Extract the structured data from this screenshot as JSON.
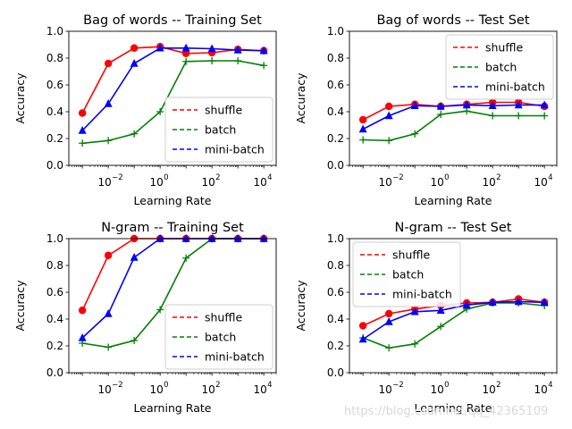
{
  "watermark": "https://blog.csdn.net/qq_42365109",
  "chart_data": [
    {
      "type": "line",
      "title": "Bag of words -- Training Set",
      "xlabel": "Learning Rate",
      "ylabel": "Accuracy",
      "xscale": "log",
      "x": [
        0.001,
        0.01,
        0.1,
        1,
        10,
        100,
        1000,
        10000
      ],
      "xlim": [
        0.0003,
        30000
      ],
      "ylim": [
        0.0,
        1.0
      ],
      "xticks": [
        0.01,
        1,
        100,
        10000
      ],
      "xtick_labels": [
        "10",
        "10",
        "10",
        "10"
      ],
      "xtick_exponents": [
        "−2",
        "0",
        "2",
        "4"
      ],
      "yticks": [
        0.0,
        0.2,
        0.4,
        0.6,
        0.8,
        1.0
      ],
      "ytick_labels": [
        "0.0",
        "0.2",
        "0.4",
        "0.6",
        "0.8",
        "1.0"
      ],
      "legend_position": "lower-right",
      "series": [
        {
          "name": "shuffle",
          "color": "#ff0000",
          "marker": "circle",
          "values": [
            0.39,
            0.76,
            0.875,
            0.885,
            0.835,
            0.84,
            0.865,
            0.855
          ]
        },
        {
          "name": "batch",
          "color": "#008000",
          "marker": "plus",
          "values": [
            0.165,
            0.185,
            0.235,
            0.4,
            0.775,
            0.78,
            0.78,
            0.745
          ]
        },
        {
          "name": "mini-batch",
          "color": "#0000ff",
          "marker": "triangle",
          "values": [
            0.26,
            0.46,
            0.76,
            0.875,
            0.875,
            0.87,
            0.86,
            0.855
          ]
        }
      ]
    },
    {
      "type": "line",
      "title": "Bag of words -- Test Set",
      "xlabel": "Learning Rate",
      "ylabel": "Accuracy",
      "xscale": "log",
      "x": [
        0.001,
        0.01,
        0.1,
        1,
        10,
        100,
        1000,
        10000
      ],
      "xlim": [
        0.0003,
        30000
      ],
      "ylim": [
        0.0,
        1.0
      ],
      "xticks": [
        0.01,
        1,
        100,
        10000
      ],
      "xtick_labels": [
        "10",
        "10",
        "10",
        "10"
      ],
      "xtick_exponents": [
        "−2",
        "0",
        "2",
        "4"
      ],
      "yticks": [
        0.0,
        0.2,
        0.4,
        0.6,
        0.8,
        1.0
      ],
      "ytick_labels": [
        "0.0",
        "0.2",
        "0.4",
        "0.6",
        "0.8",
        "1.0"
      ],
      "legend_position": "upper-right",
      "series": [
        {
          "name": "shuffle",
          "color": "#ff0000",
          "marker": "circle",
          "values": [
            0.34,
            0.44,
            0.455,
            0.44,
            0.455,
            0.47,
            0.47,
            0.44
          ]
        },
        {
          "name": "batch",
          "color": "#008000",
          "marker": "plus",
          "values": [
            0.19,
            0.185,
            0.235,
            0.38,
            0.405,
            0.37,
            0.37,
            0.37
          ]
        },
        {
          "name": "mini-batch",
          "color": "#0000ff",
          "marker": "triangle",
          "values": [
            0.27,
            0.37,
            0.445,
            0.44,
            0.45,
            0.445,
            0.45,
            0.45
          ]
        }
      ]
    },
    {
      "type": "line",
      "title": "N-gram -- Training Set",
      "xlabel": "Learning Rate",
      "ylabel": "Accuracy",
      "xscale": "log",
      "x": [
        0.001,
        0.01,
        0.1,
        1,
        10,
        100,
        1000,
        10000
      ],
      "xlim": [
        0.0003,
        30000
      ],
      "ylim": [
        0.0,
        1.0
      ],
      "xticks": [
        0.01,
        1,
        100,
        10000
      ],
      "xtick_labels": [
        "10",
        "10",
        "10",
        "10"
      ],
      "xtick_exponents": [
        "−2",
        "0",
        "2",
        "4"
      ],
      "yticks": [
        0.0,
        0.2,
        0.4,
        0.6,
        0.8,
        1.0
      ],
      "ytick_labels": [
        "0.0",
        "0.2",
        "0.4",
        "0.6",
        "0.8",
        "1.0"
      ],
      "legend_position": "lower-right",
      "series": [
        {
          "name": "shuffle",
          "color": "#ff0000",
          "marker": "circle",
          "values": [
            0.465,
            0.875,
            1.0,
            1.0,
            1.0,
            1.0,
            1.0,
            1.0
          ]
        },
        {
          "name": "batch",
          "color": "#008000",
          "marker": "plus",
          "values": [
            0.22,
            0.19,
            0.24,
            0.47,
            0.855,
            1.0,
            1.0,
            1.0
          ]
        },
        {
          "name": "mini-batch",
          "color": "#0000ff",
          "marker": "triangle",
          "values": [
            0.26,
            0.44,
            0.86,
            1.0,
            1.0,
            1.0,
            1.0,
            1.0
          ]
        }
      ]
    },
    {
      "type": "line",
      "title": "N-gram -- Test Set",
      "xlabel": "Learning Rate",
      "ylabel": "Accuracy",
      "xscale": "log",
      "x": [
        0.001,
        0.01,
        0.1,
        1,
        10,
        100,
        1000,
        10000
      ],
      "xlim": [
        0.0003,
        30000
      ],
      "ylim": [
        0.0,
        1.0
      ],
      "xticks": [
        0.01,
        1,
        100,
        10000
      ],
      "xtick_labels": [
        "10",
        "10",
        "10",
        "10"
      ],
      "xtick_exponents": [
        "−2",
        "0",
        "2",
        "4"
      ],
      "yticks": [
        0.0,
        0.2,
        0.4,
        0.6,
        0.8,
        1.0
      ],
      "ytick_labels": [
        "0.0",
        "0.2",
        "0.4",
        "0.6",
        "0.8",
        "1.0"
      ],
      "legend_position": "upper-left",
      "series": [
        {
          "name": "shuffle",
          "color": "#ff0000",
          "marker": "circle",
          "values": [
            0.35,
            0.44,
            0.475,
            0.5,
            0.52,
            0.525,
            0.55,
            0.525
          ]
        },
        {
          "name": "batch",
          "color": "#008000",
          "marker": "plus",
          "values": [
            0.26,
            0.185,
            0.215,
            0.345,
            0.475,
            0.52,
            0.52,
            0.5
          ]
        },
        {
          "name": "mini-batch",
          "color": "#0000ff",
          "marker": "triangle",
          "values": [
            0.25,
            0.38,
            0.455,
            0.465,
            0.505,
            0.525,
            0.53,
            0.525
          ]
        }
      ]
    }
  ]
}
